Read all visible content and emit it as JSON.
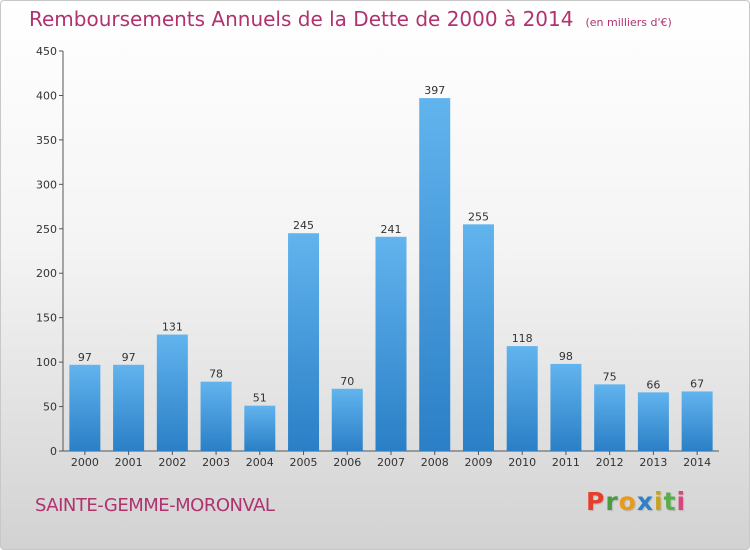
{
  "title": "Remboursements Annuels de la Dette de 2000 à 2014",
  "subtitle": "(en milliers d'€)",
  "commune": "SAINTE-GEMME-MORONVAL",
  "brand": {
    "letters": [
      "P",
      "r",
      "o",
      "x",
      "i",
      "t",
      "i"
    ],
    "colors": [
      "#e53f2b",
      "#4a9a3f",
      "#e89a1d",
      "#2f80c8",
      "#c9a21c",
      "#5aae4a",
      "#d7457d"
    ]
  },
  "colors": {
    "bar_light": "#62b4ee",
    "bar_dark": "#2a7fc6",
    "title": "#b0326e"
  },
  "chart_data": {
    "type": "bar",
    "categories": [
      "2000",
      "2001",
      "2002",
      "2003",
      "2004",
      "2005",
      "2006",
      "2007",
      "2008",
      "2009",
      "2010",
      "2011",
      "2012",
      "2013",
      "2014"
    ],
    "values": [
      97,
      97,
      131,
      78,
      51,
      245,
      70,
      241,
      397,
      255,
      118,
      98,
      75,
      66,
      67
    ],
    "ylim": [
      0,
      450
    ],
    "yticks": [
      0,
      50,
      100,
      150,
      200,
      250,
      300,
      350,
      400,
      450
    ],
    "grid": false,
    "legend": "none"
  }
}
